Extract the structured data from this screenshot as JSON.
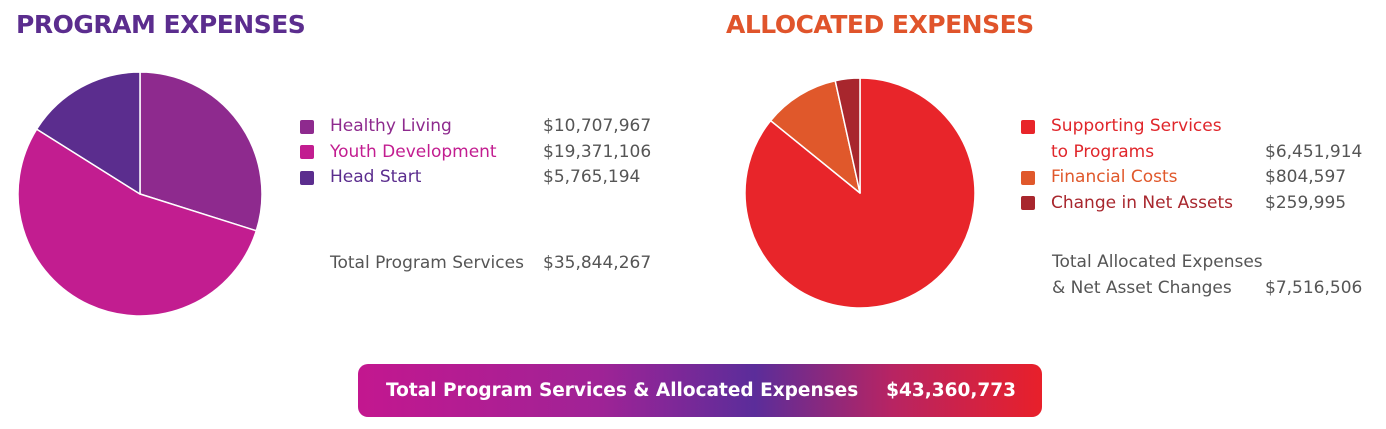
{
  "program": {
    "title": "PROGRAM EXPENSES",
    "total_label": "Total Program Services",
    "total_value": "$35,844,267"
  },
  "allocated": {
    "title": "ALLOCATED EXPENSES",
    "total_label_line1": "Total Allocated Expenses",
    "total_label_line2": "& Net Asset Changes",
    "total_value": "$7,516,506"
  },
  "grand_total": {
    "label": "Total Program Services & Allocated Expenses",
    "value": "$43,360,773"
  },
  "chart_data": [
    {
      "type": "pie",
      "title": "PROGRAM EXPENSES",
      "slices": [
        {
          "label": "Healthy Living",
          "value": 10707967,
          "value_text": "$10,707,967",
          "color": "#8e2a8e",
          "label_color": "#8e2a8e"
        },
        {
          "label": "Youth Development",
          "value": 19371106,
          "value_text": "$19,371,106",
          "color": "#c21d90",
          "label_color": "#c21d90"
        },
        {
          "label": "Head Start",
          "value": 5765194,
          "value_text": "$5,765,194",
          "color": "#5b2d8e",
          "label_color": "#5b2d8e"
        }
      ]
    },
    {
      "type": "pie",
      "title": "ALLOCATED EXPENSES",
      "slices": [
        {
          "label": "Supporting Services",
          "label2": "to Programs",
          "value": 6451914,
          "value_text": "$6,451,914",
          "color": "#e8252a",
          "label_color": "#e0262b"
        },
        {
          "label": "Financial Costs",
          "value": 804597,
          "value_text": "$804,597",
          "color": "#e0582b",
          "label_color": "#e0582b"
        },
        {
          "label": "Change in Net Assets",
          "value": 259995,
          "value_text": "$259,995",
          "color": "#a8262d",
          "label_color": "#a8262d"
        }
      ]
    }
  ]
}
